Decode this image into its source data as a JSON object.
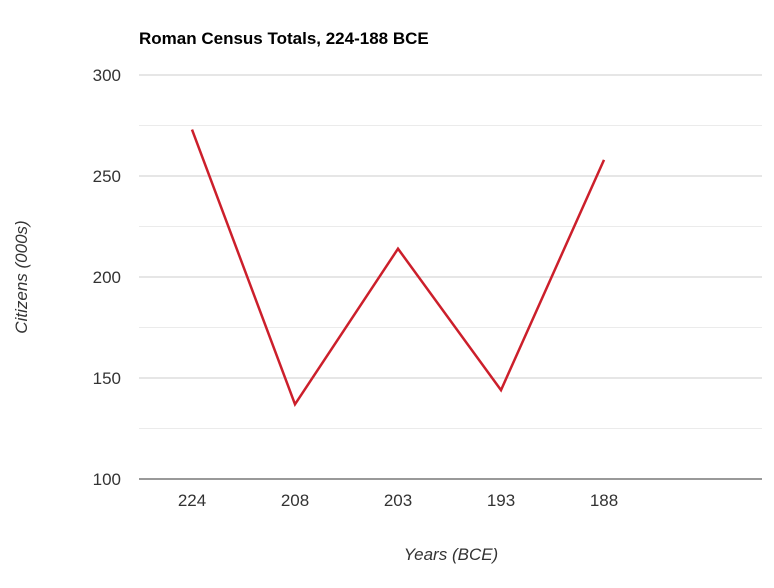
{
  "chart_data": {
    "type": "line",
    "title": "Roman Census Totals, 224-188 BCE",
    "xlabel": "Years (BCE)",
    "ylabel": "Citizens (000s)",
    "categories": [
      "224",
      "208",
      "203",
      "193",
      "188"
    ],
    "series": [
      {
        "values": [
          273,
          137,
          214,
          144,
          258
        ],
        "color": "#cc1f2b"
      }
    ],
    "ylim": [
      100,
      300
    ],
    "yticks": [
      100,
      150,
      200,
      250,
      300
    ],
    "minor_grid": [
      125,
      175,
      225,
      275
    ],
    "grid": true,
    "legend": "none"
  }
}
